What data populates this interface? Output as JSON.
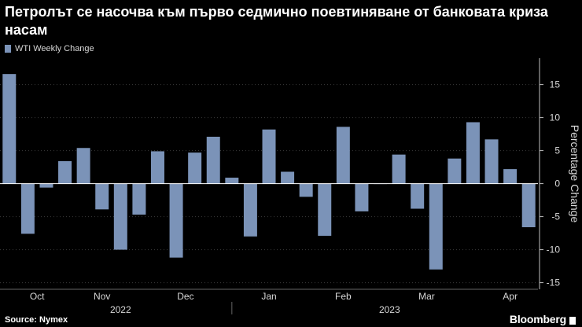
{
  "title": "Петролът се насочва към първо седмично поевтиняване от банковата криза насам",
  "legend": {
    "label": "WTI Weekly Change",
    "color": "#7b93b8"
  },
  "chart_data": {
    "type": "bar",
    "title": "Петролът се насочва към първо седмично поевтиняване от банковата криза насам",
    "ylabel": "Percentage Change",
    "xlabel": "",
    "ylim": [
      -16,
      19
    ],
    "yticks": [
      -15,
      -10,
      -5,
      0,
      5,
      10,
      15
    ],
    "series": [
      {
        "name": "WTI Weekly Change",
        "values": [
          16.6,
          -7.6,
          -0.6,
          3.4,
          5.4,
          -3.9,
          -10.0,
          -4.7,
          4.9,
          -11.2,
          4.7,
          7.1,
          0.9,
          -8.0,
          8.2,
          1.8,
          -2.0,
          -7.9,
          8.6,
          -4.2,
          0.0,
          4.4,
          -3.8,
          -13.0,
          3.8,
          9.3,
          6.7,
          2.2,
          -6.6
        ]
      }
    ],
    "month_labels": [
      {
        "label": "Oct",
        "week": 1.5
      },
      {
        "label": "Nov",
        "week": 5
      },
      {
        "label": "Dec",
        "week": 9.5
      },
      {
        "label": "Jan",
        "week": 14
      },
      {
        "label": "Feb",
        "week": 18
      },
      {
        "label": "Mar",
        "week": 22.5
      },
      {
        "label": "Apr",
        "week": 27
      }
    ],
    "year_labels": [
      {
        "label": "2022",
        "week": 6
      },
      {
        "label": "2023",
        "week": 20.5
      }
    ],
    "year_divider_week": 12.5,
    "bar_color": "#7b93b8"
  },
  "footer": {
    "source": "Source: Nymex",
    "brand": "Bloomberg"
  }
}
